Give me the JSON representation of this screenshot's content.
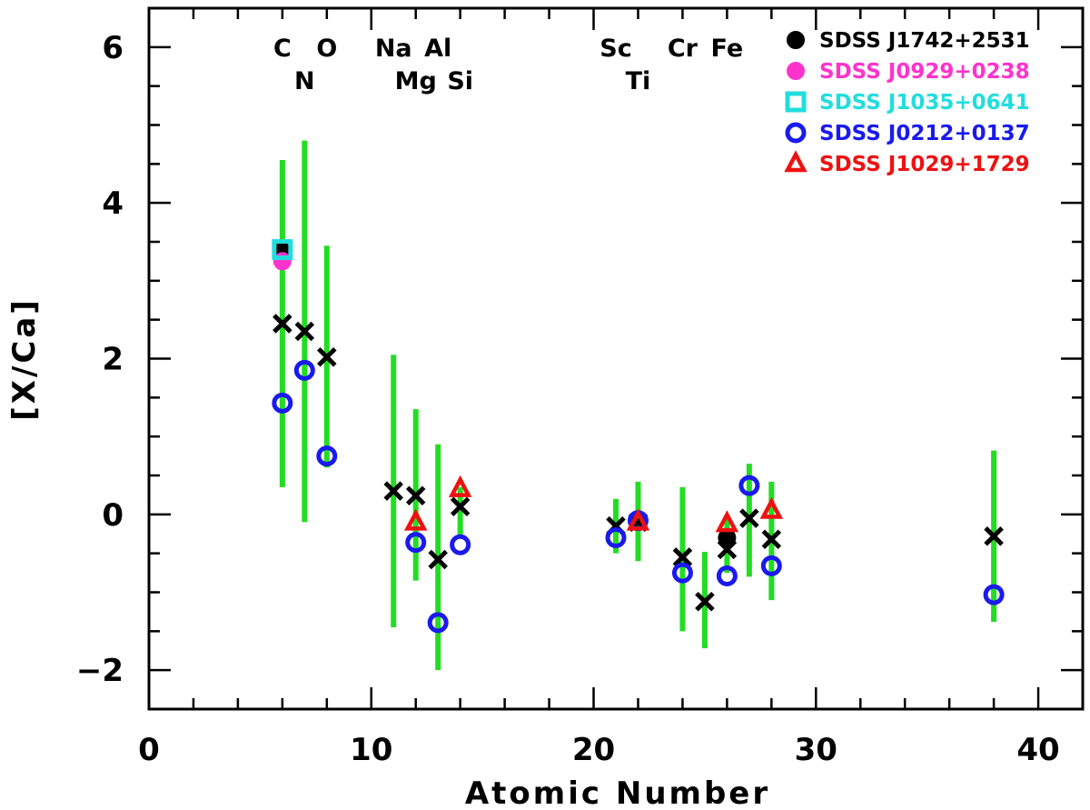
{
  "chart_data": {
    "type": "scatter",
    "title": "",
    "xlabel": "Atomic Number",
    "ylabel": "[X/Ca]",
    "xlim": [
      0,
      42
    ],
    "ylim": [
      -2.5,
      6.5
    ],
    "x_ticks": [
      0,
      10,
      20,
      30,
      40
    ],
    "y_ticks": [
      -2,
      0,
      2,
      4,
      6
    ],
    "x_tick_labels": [
      "0",
      "10",
      "20",
      "30",
      "40"
    ],
    "y_tick_labels": [
      "−2",
      "0",
      "2",
      "4",
      "6"
    ],
    "grid": false,
    "legend_position": "top-right",
    "element_labels": [
      {
        "text": "C",
        "x": 6,
        "row": 1
      },
      {
        "text": "N",
        "x": 7,
        "row": 2
      },
      {
        "text": "O",
        "x": 8,
        "row": 1
      },
      {
        "text": "Na",
        "x": 11,
        "row": 1
      },
      {
        "text": "Mg",
        "x": 12,
        "row": 2
      },
      {
        "text": "Al",
        "x": 13,
        "row": 1
      },
      {
        "text": "Si",
        "x": 14,
        "row": 2
      },
      {
        "text": "Sc",
        "x": 21,
        "row": 1
      },
      {
        "text": "Ti",
        "x": 22,
        "row": 2
      },
      {
        "text": "Cr",
        "x": 24,
        "row": 1
      },
      {
        "text": "Fe",
        "x": 26,
        "row": 1
      }
    ],
    "reference_ranges": {
      "color": "#22dd22",
      "marker": "cross",
      "marker_color": "#000000",
      "points": [
        {
          "x": 6,
          "y": 2.45,
          "low": 0.35,
          "high": 4.55
        },
        {
          "x": 7,
          "y": 2.35,
          "low": -0.1,
          "high": 4.8
        },
        {
          "x": 8,
          "y": 2.02,
          "low": 0.6,
          "high": 3.45
        },
        {
          "x": 11,
          "y": 0.3,
          "low": -1.45,
          "high": 2.05
        },
        {
          "x": 12,
          "y": 0.24,
          "low": -0.85,
          "high": 1.35
        },
        {
          "x": 13,
          "y": -0.58,
          "low": -2.0,
          "high": 0.9
        },
        {
          "x": 14,
          "y": 0.1,
          "low": -0.3,
          "high": 0.35
        },
        {
          "x": 21,
          "y": -0.15,
          "low": -0.5,
          "high": 0.2
        },
        {
          "x": 22,
          "y": -0.1,
          "low": -0.6,
          "high": 0.42
        },
        {
          "x": 24,
          "y": -0.55,
          "low": -1.5,
          "high": 0.35
        },
        {
          "x": 25,
          "y": -1.12,
          "low": -1.72,
          "high": -0.48
        },
        {
          "x": 26,
          "y": -0.45,
          "low": -0.75,
          "high": -0.05
        },
        {
          "x": 27,
          "y": -0.05,
          "low": -0.8,
          "high": 0.65
        },
        {
          "x": 28,
          "y": -0.32,
          "low": -1.1,
          "high": 0.42
        },
        {
          "x": 38,
          "y": -0.28,
          "low": -1.38,
          "high": 0.82
        }
      ]
    },
    "series": [
      {
        "name": "SDSS J1742+2531",
        "marker": "filled-circle",
        "color": "#000000",
        "points": [
          {
            "x": 6,
            "y": 3.38
          },
          {
            "x": 26,
            "y": -0.3
          }
        ]
      },
      {
        "name": "SDSS J0929+0238",
        "marker": "filled-circle",
        "color": "#ff33cc",
        "points": [
          {
            "x": 6,
            "y": 3.25
          }
        ]
      },
      {
        "name": "SDSS J1035+0641",
        "marker": "open-square",
        "color": "#22dddd",
        "points": [
          {
            "x": 6,
            "y": 3.4
          }
        ]
      },
      {
        "name": "SDSS J0212+0137",
        "marker": "open-circle",
        "color": "#1a1aee",
        "points": [
          {
            "x": 6,
            "y": 1.43
          },
          {
            "x": 7,
            "y": 1.85
          },
          {
            "x": 8,
            "y": 0.75
          },
          {
            "x": 12,
            "y": -0.36
          },
          {
            "x": 13,
            "y": -1.39
          },
          {
            "x": 14,
            "y": -0.39
          },
          {
            "x": 21,
            "y": -0.3
          },
          {
            "x": 22,
            "y": -0.08
          },
          {
            "x": 24,
            "y": -0.75
          },
          {
            "x": 26,
            "y": -0.79
          },
          {
            "x": 27,
            "y": 0.37
          },
          {
            "x": 28,
            "y": -0.66
          },
          {
            "x": 38,
            "y": -1.03
          }
        ]
      },
      {
        "name": "SDSS J1029+1729",
        "marker": "open-triangle",
        "color": "#ee1111",
        "points": [
          {
            "x": 12,
            "y": -0.1
          },
          {
            "x": 14,
            "y": 0.33
          },
          {
            "x": 22,
            "y": -0.1
          },
          {
            "x": 26,
            "y": -0.12
          },
          {
            "x": 28,
            "y": 0.05
          }
        ]
      }
    ]
  }
}
